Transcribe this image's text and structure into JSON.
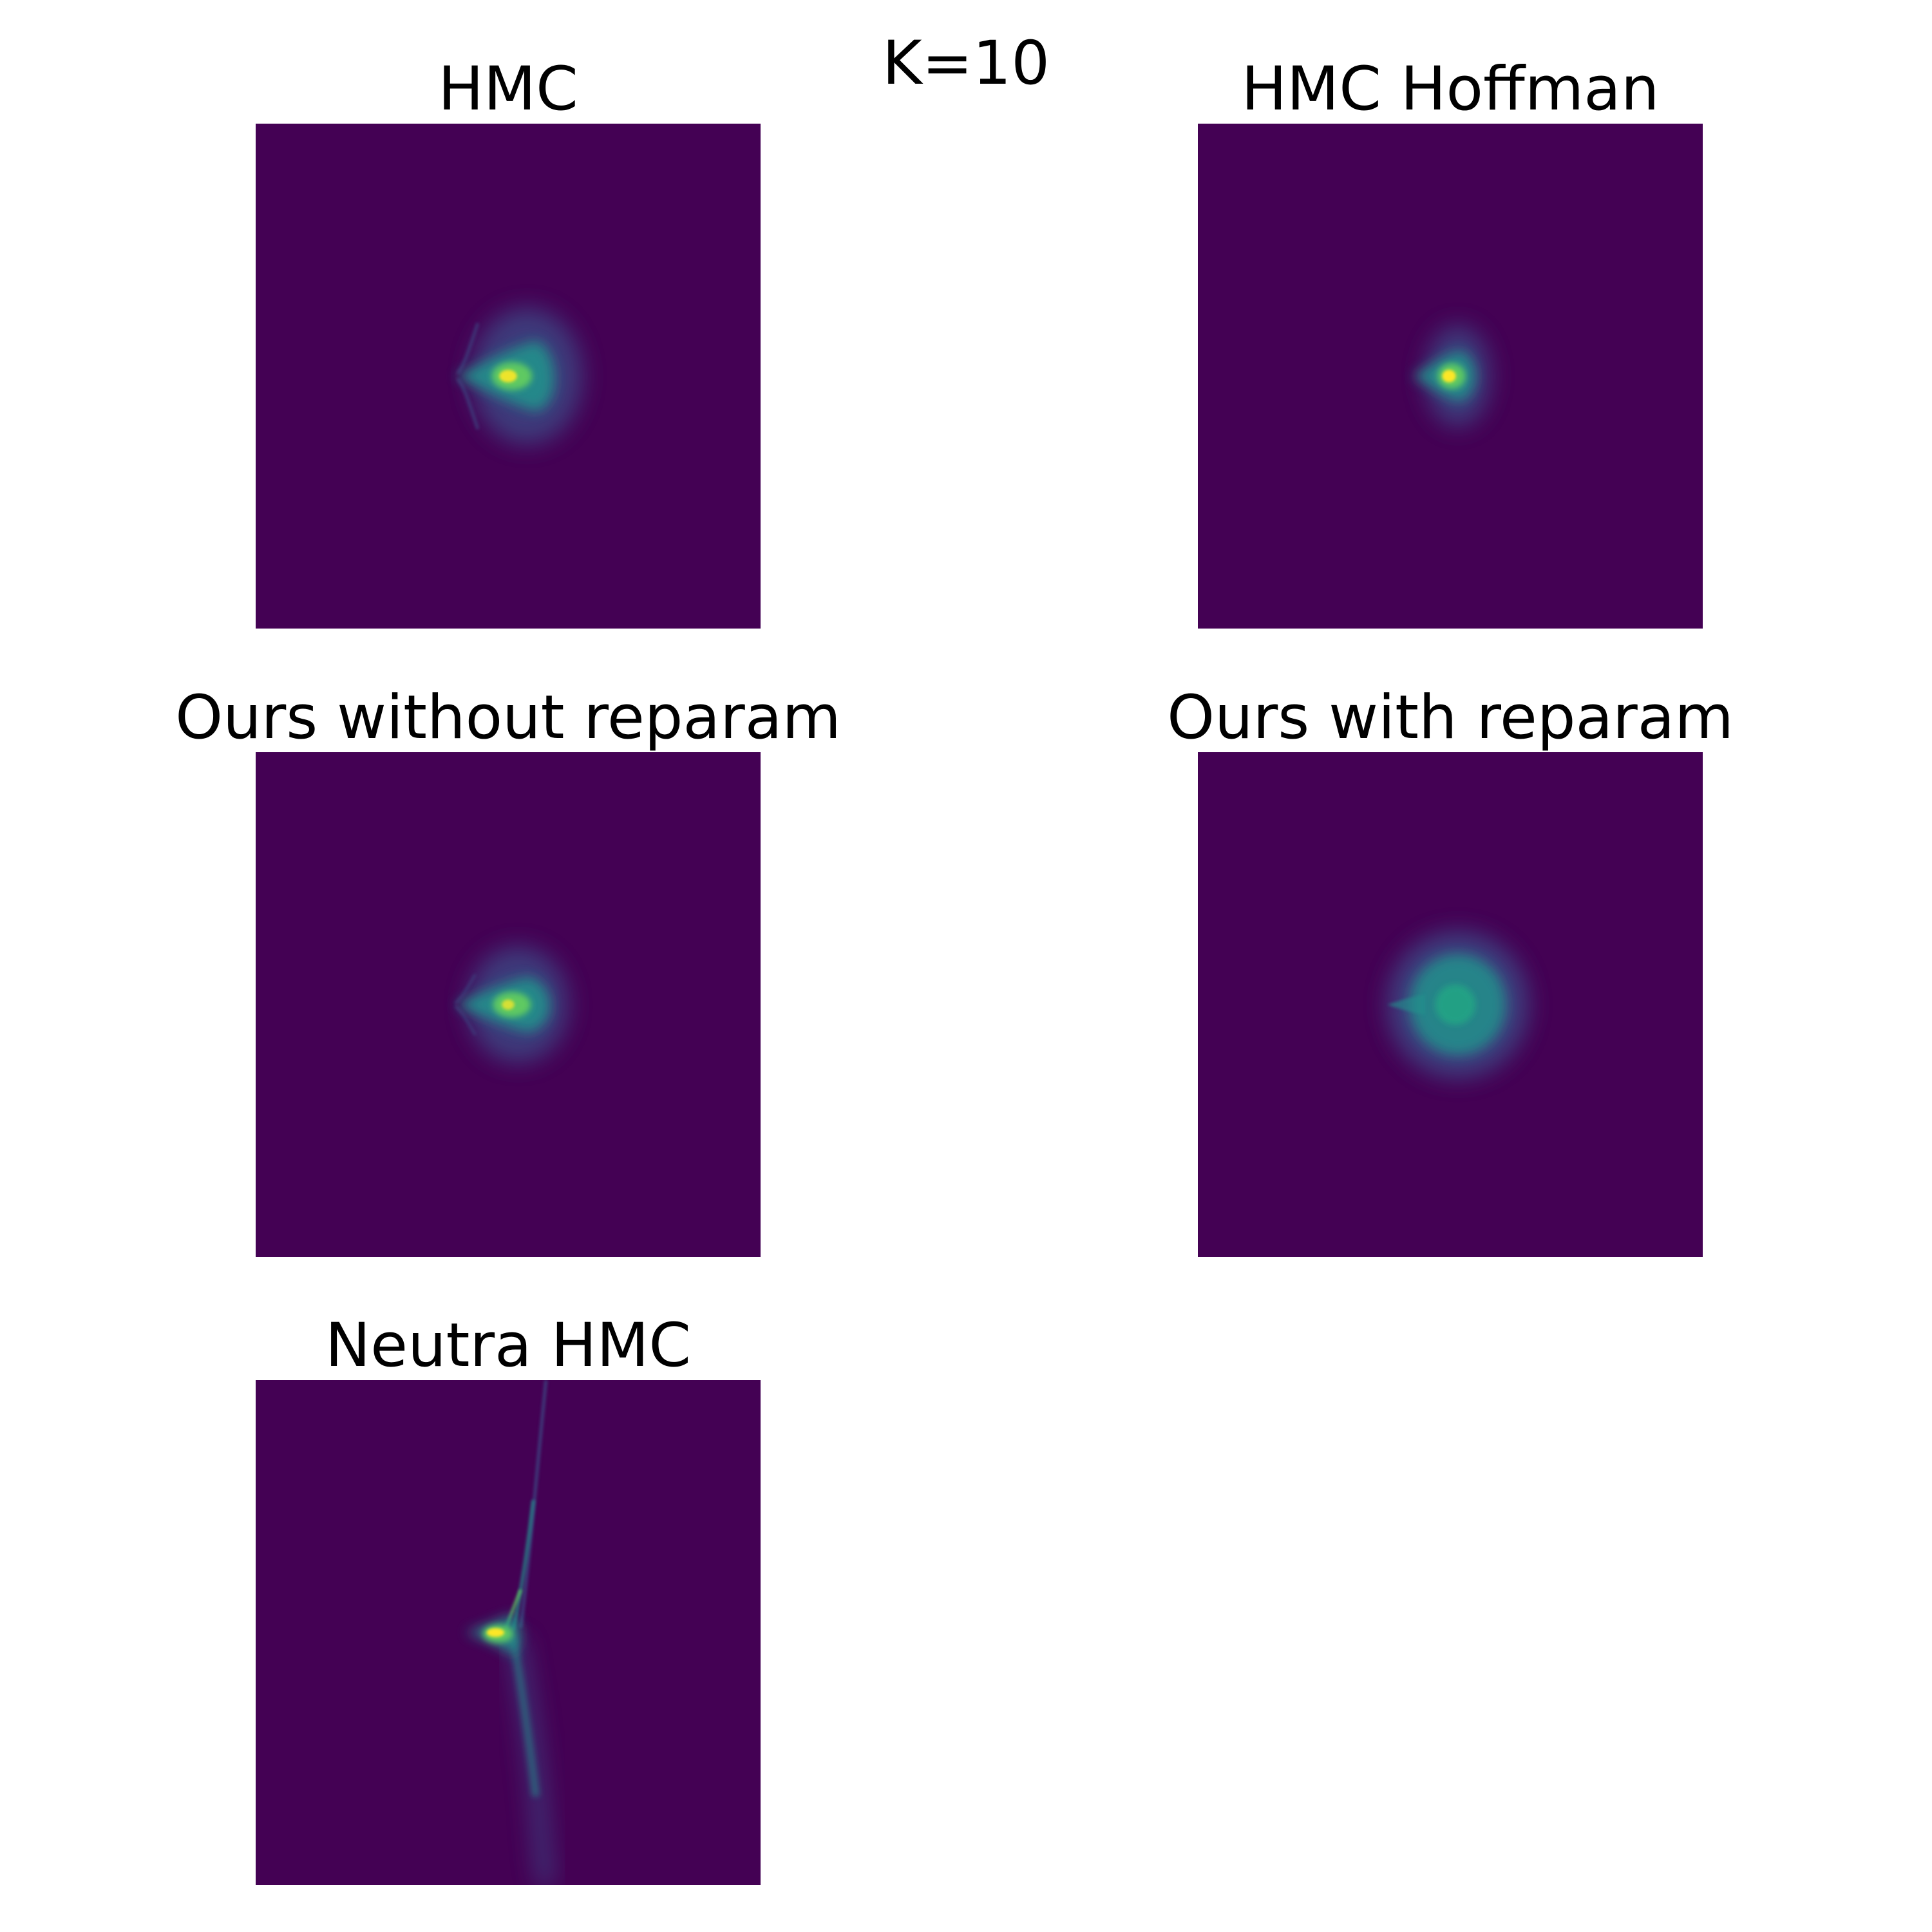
{
  "figure": {
    "title": "K=10"
  },
  "colors": {
    "background": "#440154",
    "viridis": [
      "#440154",
      "#3b528b",
      "#21918c",
      "#5ec962",
      "#fde725"
    ]
  },
  "chart_data": [
    {
      "type": "heatmap",
      "title": "HMC",
      "colormap": "viridis",
      "axes": "off",
      "distribution": "funnel-shaped density, narrow neck pointing left, spread to the right, centered in the panel"
    },
    {
      "type": "heatmap",
      "title": "HMC Hoffman",
      "colormap": "viridis",
      "axes": "off",
      "distribution": "compact bright blob with short left tail, centered in the panel"
    },
    {
      "type": "heatmap",
      "title": "Ours without reparam",
      "colormap": "viridis",
      "axes": "off",
      "distribution": "funnel-shaped density with left neck, moderately spread, centered in the panel"
    },
    {
      "type": "heatmap",
      "title": "Ours with reparam",
      "colormap": "viridis",
      "axes": "off",
      "distribution": "broad diffuse blob with short left tail, centered in the panel"
    },
    {
      "type": "heatmap",
      "title": "Neutra HMC",
      "colormap": "viridis",
      "axes": "off",
      "distribution": "bright core left of center with long thin streaks extending up and down"
    }
  ]
}
